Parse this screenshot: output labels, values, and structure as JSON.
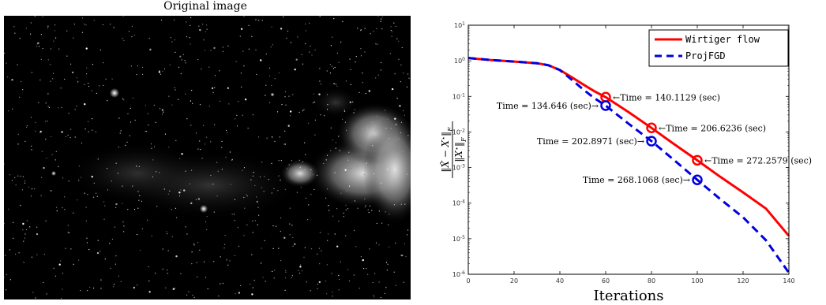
{
  "image_panel": {
    "title": "Original image"
  },
  "chart_data": {
    "type": "line",
    "title": "",
    "xlabel": "Iterations",
    "ylabel": "||X̂ − X*||_F / ||X*||_F",
    "xlim": [
      0,
      140
    ],
    "ylim_log10": [
      -6,
      1
    ],
    "yscale": "log",
    "xticks": [
      "0",
      "20",
      "40",
      "60",
      "80",
      "100",
      "120",
      "140"
    ],
    "yticks": [
      "10^-6",
      "10^-5",
      "10^-4",
      "10^-3",
      "10^-2",
      "10^-1",
      "10^0",
      "10^1"
    ],
    "legend_position": "top-right",
    "series": [
      {
        "name": "Wirtiger flow",
        "color": "#ff0000",
        "style": "solid",
        "x": [
          0,
          10,
          20,
          30,
          35,
          40,
          45,
          50,
          55,
          60,
          70,
          80,
          90,
          100,
          110,
          120,
          130,
          140
        ],
        "y": [
          1.2,
          1.05,
          0.95,
          0.85,
          0.75,
          0.55,
          0.35,
          0.22,
          0.14,
          0.095,
          0.036,
          0.013,
          0.0045,
          0.0016,
          0.00055,
          0.0002,
          7e-05,
          1.2e-05
        ]
      },
      {
        "name": "ProjFGD",
        "color": "#0000e0",
        "style": "dashed",
        "x": [
          0,
          10,
          20,
          30,
          35,
          40,
          45,
          50,
          55,
          60,
          70,
          80,
          90,
          100,
          110,
          120,
          130,
          140
        ],
        "y": [
          1.2,
          1.05,
          0.95,
          0.85,
          0.75,
          0.55,
          0.3,
          0.16,
          0.09,
          0.055,
          0.017,
          0.0055,
          0.0016,
          0.00045,
          0.00013,
          4e-05,
          9e-06,
          1.1e-06
        ]
      }
    ],
    "markers": [
      {
        "series": 0,
        "x": 60,
        "y": 0.095,
        "label": "←Time = 140.1129 (sec)",
        "side": "right"
      },
      {
        "series": 0,
        "x": 80,
        "y": 0.013,
        "label": "←Time = 206.6236 (sec)",
        "side": "right"
      },
      {
        "series": 0,
        "x": 100,
        "y": 0.0016,
        "label": "←Time = 272.2579 (sec)",
        "side": "right"
      },
      {
        "series": 1,
        "x": 60,
        "y": 0.055,
        "label": "Time = 134.646 (sec)→",
        "side": "left"
      },
      {
        "series": 1,
        "x": 80,
        "y": 0.0055,
        "label": "Time = 202.8971 (sec)→",
        "side": "left"
      },
      {
        "series": 1,
        "x": 100,
        "y": 0.00045,
        "label": "Time = 268.1068 (sec)→",
        "side": "left"
      }
    ]
  }
}
